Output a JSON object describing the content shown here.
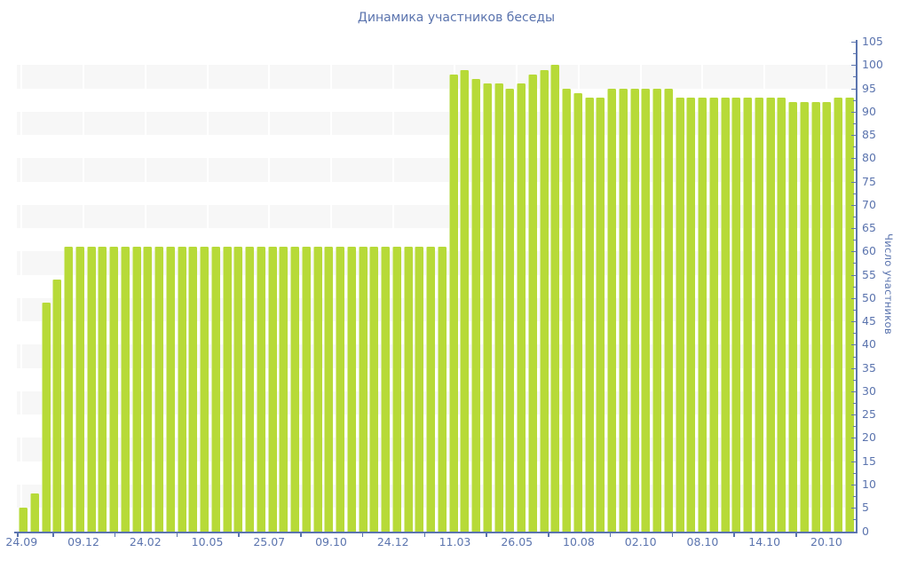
{
  "title": "Динамика участников беседы",
  "chart_data": {
    "type": "bar",
    "title": "Динамика участников беседы",
    "xlabel": "",
    "ylabel": "Число участников",
    "ylim": [
      0,
      105
    ],
    "y_tick_step": 5,
    "y_minor_tick_step": 2.5,
    "y_axis_side": "right",
    "legend": "none",
    "grid": "alternating horizontal 5-unit bands + white vertical lines at label positions",
    "x_labels": [
      "24.09",
      "09.12",
      "24.02",
      "10.05",
      "25.07",
      "09.10",
      "24.12",
      "11.03",
      "26.05",
      "10.08",
      "02.10",
      "08.10",
      "14.10",
      "20.10"
    ],
    "values": [
      5,
      8,
      49,
      54,
      61,
      61,
      61,
      61,
      61,
      61,
      61,
      61,
      61,
      61,
      61,
      61,
      61,
      61,
      61,
      61,
      61,
      61,
      61,
      61,
      61,
      61,
      61,
      61,
      61,
      61,
      61,
      61,
      61,
      61,
      61,
      61,
      61,
      61,
      98,
      99,
      97,
      96,
      96,
      95,
      96,
      98,
      99,
      100,
      95,
      94,
      93,
      93,
      95,
      95,
      95,
      95,
      95,
      95,
      93,
      93,
      93,
      93,
      93,
      93,
      93,
      93,
      93,
      93,
      92,
      92,
      92,
      92,
      93,
      93
    ],
    "colors": {
      "bar": "#b7da38",
      "bar_highlight": "#d9ec9c",
      "axis": "#5b74ae",
      "labels": "#5b74ae",
      "title": "#5b74ae",
      "band": "#f7f7f7",
      "background": "#ffffff"
    }
  }
}
